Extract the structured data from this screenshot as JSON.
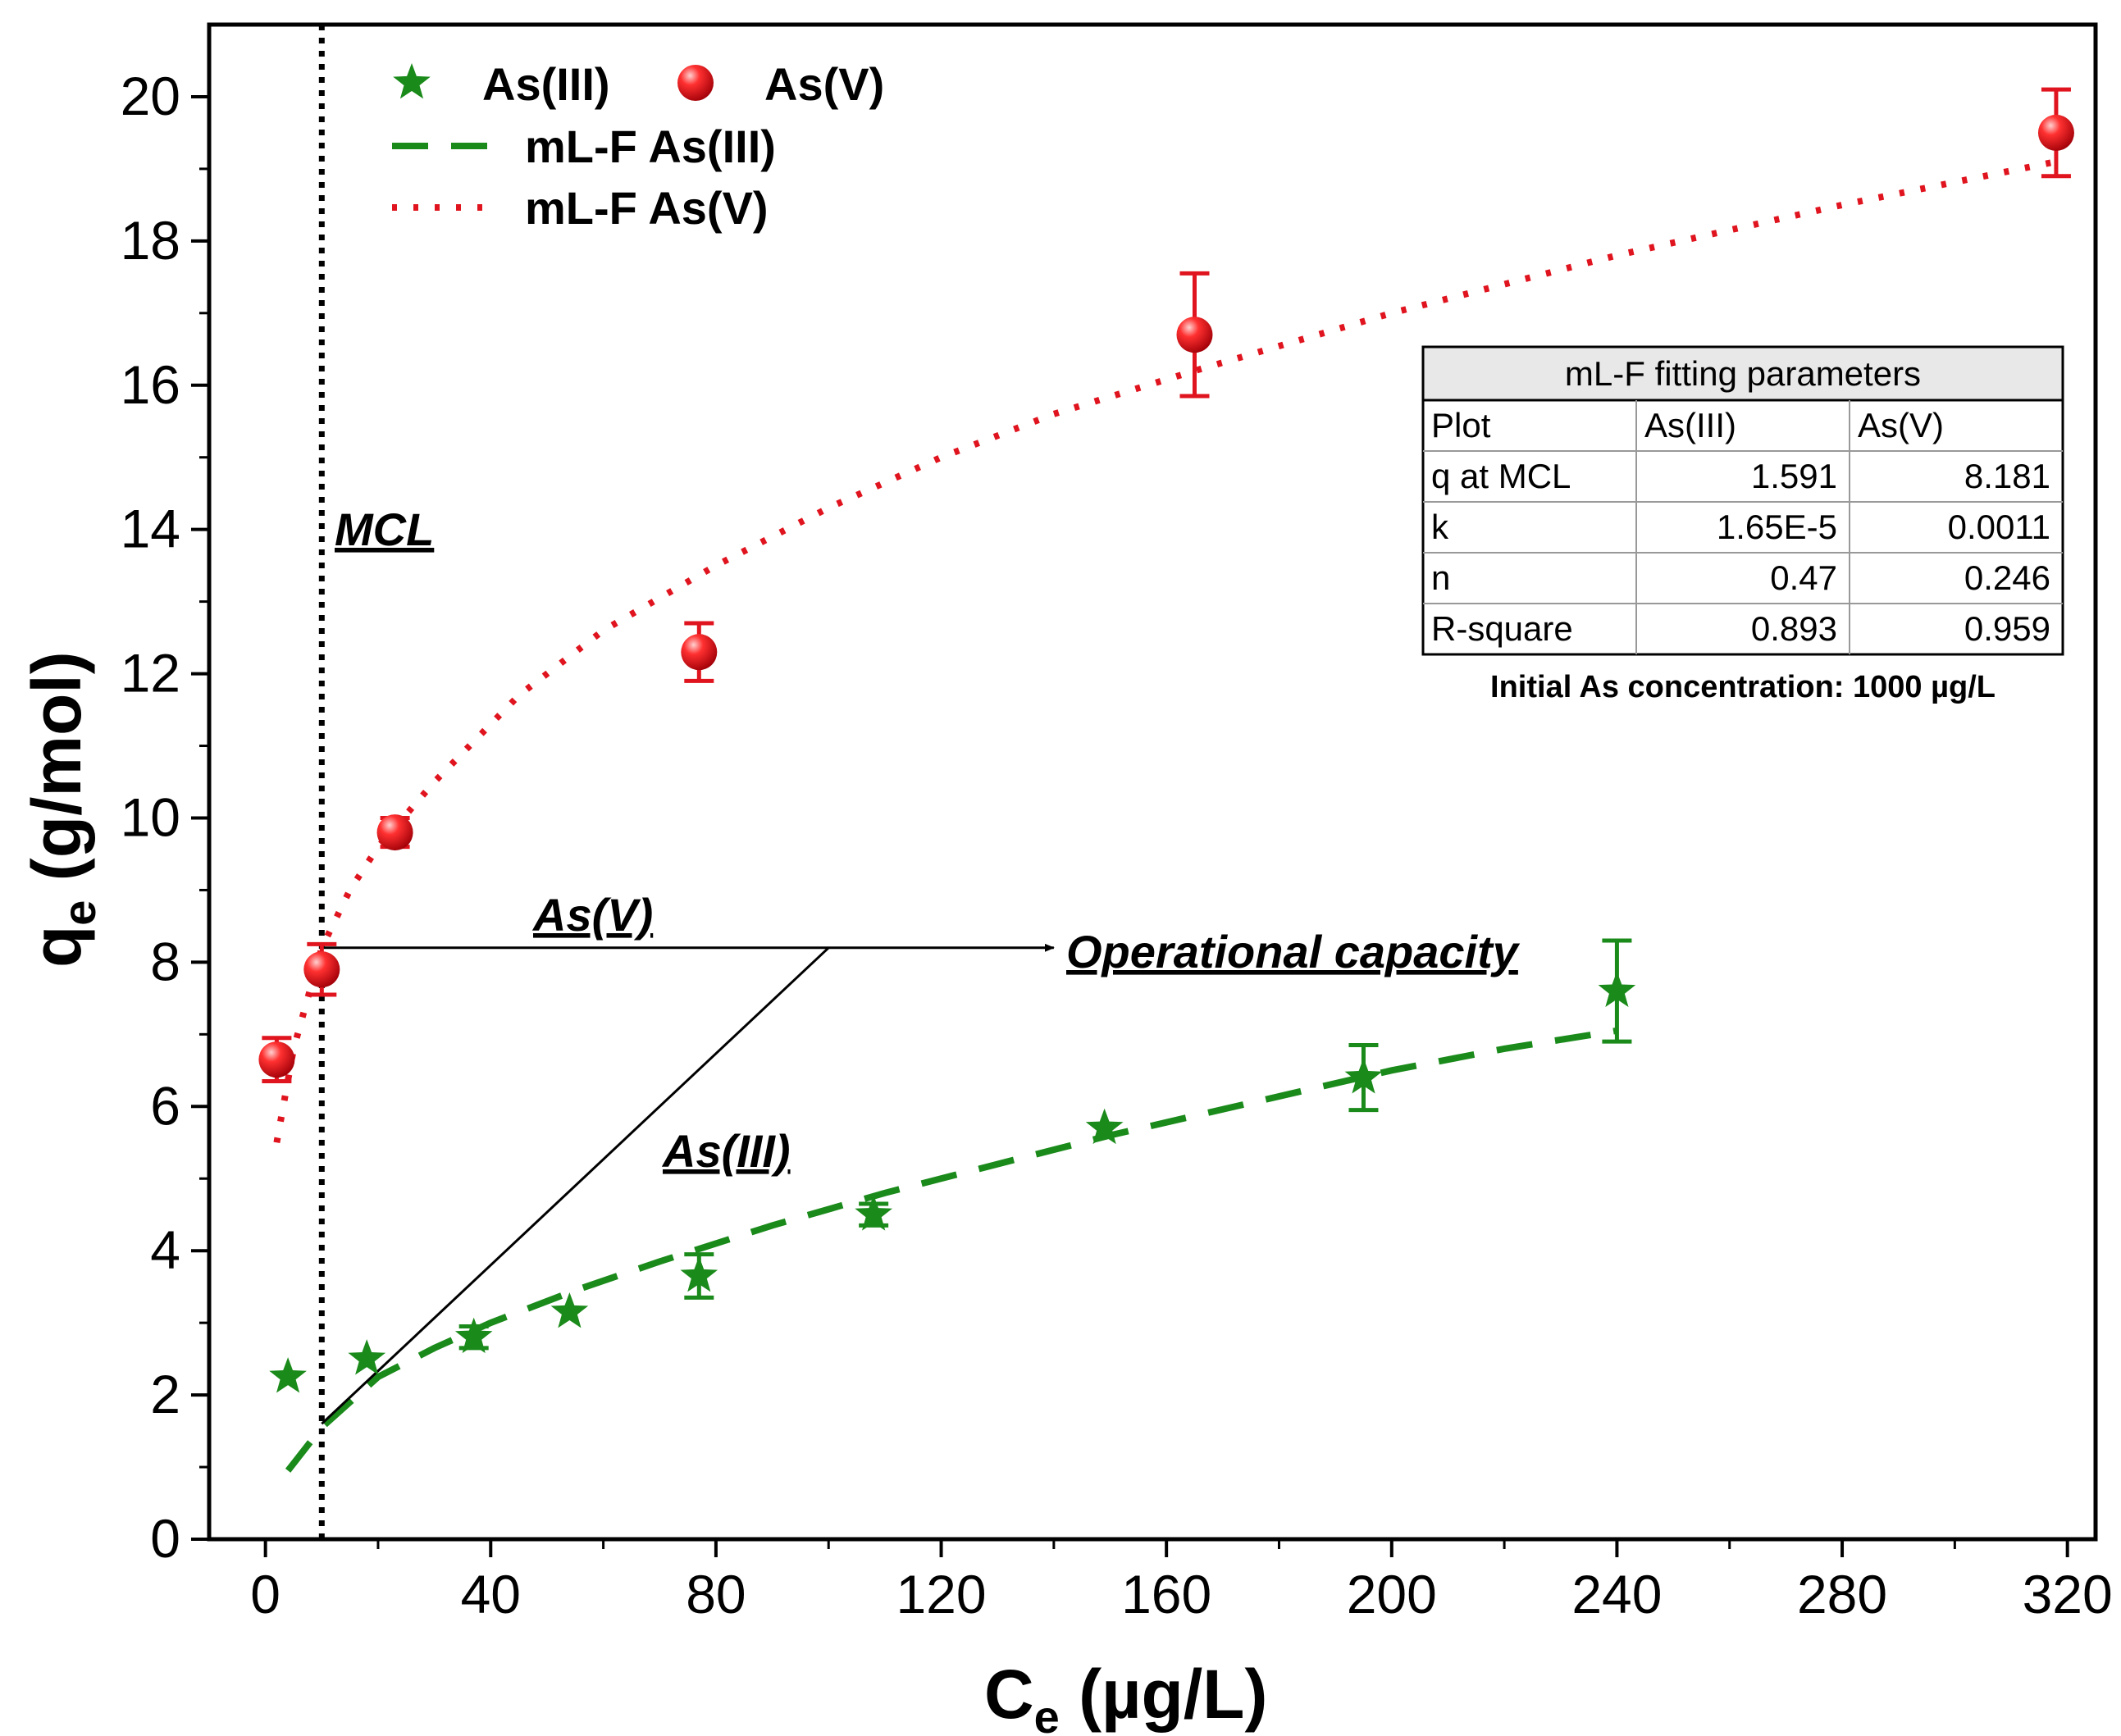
{
  "chart_data": {
    "type": "scatter",
    "xlabel": "C",
    "xlabel_sub": "e",
    "xlabel_unit": " (µg/L)",
    "ylabel": "q",
    "ylabel_sub": "e",
    "ylabel_unit": " (g/mol)",
    "xlim": [
      -10,
      325
    ],
    "ylim": [
      0,
      21
    ],
    "xticks": [
      0,
      40,
      80,
      120,
      160,
      200,
      240,
      280,
      320
    ],
    "yticks": [
      0,
      2,
      4,
      6,
      8,
      10,
      12,
      14,
      16,
      18,
      20
    ],
    "legend_position": "top-left",
    "series": [
      {
        "name": "As(III)",
        "kind": "points",
        "marker": "star",
        "color": "#1a8a1a",
        "points": [
          {
            "x": 4,
            "y": 2.25,
            "err": 0
          },
          {
            "x": 18,
            "y": 2.5,
            "err": 0
          },
          {
            "x": 37,
            "y": 2.8,
            "err": 0.15
          },
          {
            "x": 54,
            "y": 3.15,
            "err": 0
          },
          {
            "x": 77,
            "y": 3.65,
            "err": 0.3
          },
          {
            "x": 108,
            "y": 4.5,
            "err": 0.15
          },
          {
            "x": 149,
            "y": 5.7,
            "err": 0
          },
          {
            "x": 195,
            "y": 6.4,
            "err": 0.45
          },
          {
            "x": 240,
            "y": 7.6,
            "err": 0.7
          }
        ]
      },
      {
        "name": "As(V)",
        "kind": "points",
        "marker": "sphere",
        "color": "#e0141e",
        "points": [
          {
            "x": 2,
            "y": 6.65,
            "err": 0.3
          },
          {
            "x": 10,
            "y": 7.9,
            "err": 0.35
          },
          {
            "x": 23,
            "y": 9.8,
            "err": 0.2
          },
          {
            "x": 77,
            "y": 12.3,
            "err": 0.4
          },
          {
            "x": 165,
            "y": 16.7,
            "err": 0.85
          },
          {
            "x": 318,
            "y": 19.5,
            "err": 0.6
          }
        ]
      },
      {
        "name": "mL-F As(III)",
        "kind": "fit",
        "style": "dashed",
        "color": "#1a8a1a",
        "x": [
          4,
          10,
          20,
          30,
          40,
          55,
          70,
          90,
          110,
          130,
          150,
          175,
          200,
          220,
          240
        ],
        "y": [
          0.95,
          1.55,
          2.25,
          2.65,
          3.0,
          3.45,
          3.85,
          4.35,
          4.8,
          5.2,
          5.6,
          6.05,
          6.5,
          6.8,
          7.05
        ]
      },
      {
        "name": "mL-F As(V)",
        "kind": "fit",
        "style": "dotted",
        "color": "#e0141e",
        "x": [
          2,
          5,
          10,
          15,
          20,
          30,
          45,
          60,
          80,
          100,
          120,
          140,
          165,
          200,
          240,
          280,
          318
        ],
        "y": [
          5.5,
          6.8,
          8.2,
          9.0,
          9.6,
          10.5,
          11.7,
          12.6,
          13.5,
          14.3,
          15.0,
          15.6,
          16.2,
          17.0,
          17.8,
          18.5,
          19.1
        ]
      }
    ],
    "mcl_line_x": 10,
    "annotations": {
      "mcl": "MCL",
      "as_v": "As(V)",
      "as_iii": "As(III)",
      "operational": "Operational capacity"
    },
    "arrow": {
      "from_x": 10,
      "from_y": 8.2,
      "to_x": 140,
      "to_y": 8.2,
      "diag_from_x": 10,
      "diag_from_y": 1.6,
      "diag_to_x": 100,
      "diag_to_y": 8.2
    }
  },
  "table": {
    "title": "mL-F fitting parameters",
    "header": [
      "Plot",
      "As(III)",
      "As(V)"
    ],
    "rows": [
      [
        "q at MCL",
        "1.591",
        "8.181"
      ],
      [
        "k",
        "1.65E-5",
        "0.0011"
      ],
      [
        "n",
        "0.47",
        "0.246"
      ],
      [
        "R-square",
        "0.893",
        "0.959"
      ]
    ],
    "note": "Initial As concentration: 1000 µg/L"
  }
}
